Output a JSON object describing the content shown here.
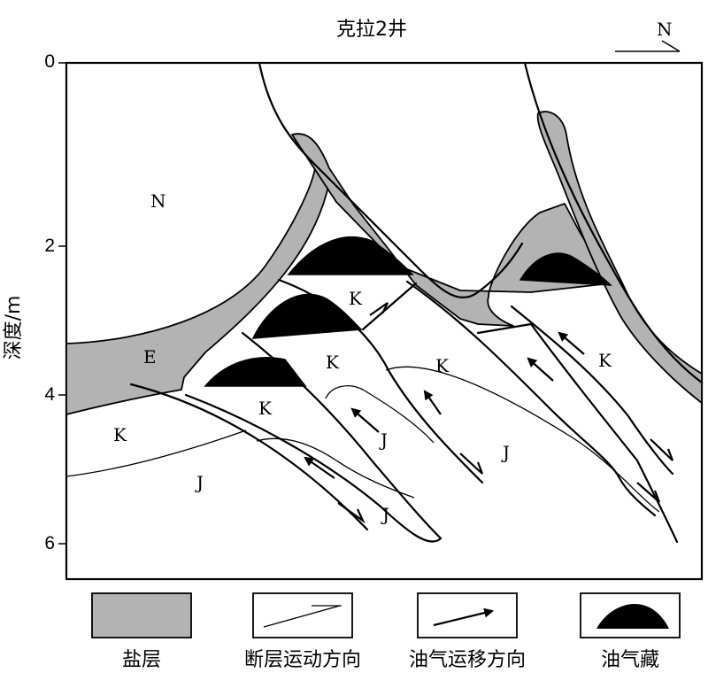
{
  "title": "克拉2井",
  "north": "N",
  "axis": {
    "ylabel": "深度/m",
    "ticks": [
      "0",
      "2",
      "4",
      "6"
    ]
  },
  "labels": {
    "n": "N",
    "e": "E",
    "k": "K",
    "j": "J"
  },
  "legend": [
    {
      "key": "salt",
      "label": "盐层"
    },
    {
      "key": "fault",
      "label": "断层运动方向"
    },
    {
      "key": "migration",
      "label": "油气运移方向"
    },
    {
      "key": "reservoir",
      "label": "油气藏"
    }
  ],
  "colors": {
    "salt": "#b3b3b3",
    "reservoir": "#000000",
    "line": "#000000"
  }
}
